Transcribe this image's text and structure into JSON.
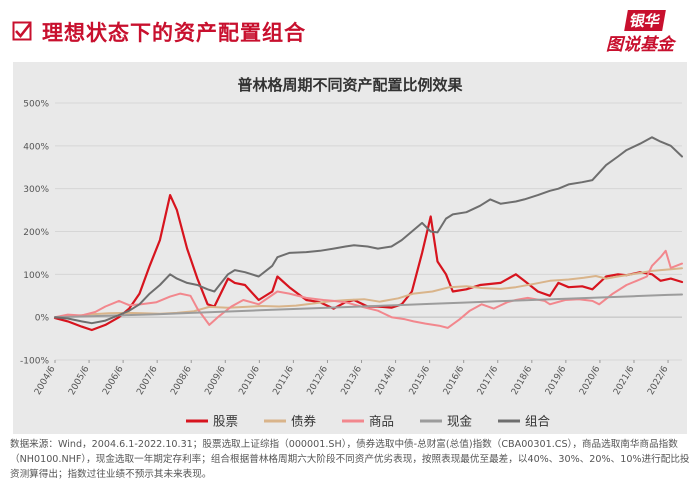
{
  "header": {
    "title": "理想状态下的资产配置组合",
    "brand_line1": "银华",
    "brand_line2": "图说基金"
  },
  "chart_data": {
    "type": "line",
    "title": "普林格周期不同资产配置比例效果",
    "xlabel": "",
    "ylabel": "",
    "ylim": [
      -100,
      500
    ],
    "yticks": [
      "-100%",
      "0%",
      "100%",
      "200%",
      "300%",
      "400%",
      "500%"
    ],
    "x_categories": [
      "2004/6",
      "2005/6",
      "2006/6",
      "2007/6",
      "2008/6",
      "2009/6",
      "2010/6",
      "2011/6",
      "2012/6",
      "2013/6",
      "2014/6",
      "2015/6",
      "2016/6",
      "2017/6",
      "2018/6",
      "2019/6",
      "2020/6",
      "2021/6",
      "2022/6"
    ],
    "grid": true,
    "legend_position": "bottom",
    "series": [
      {
        "name": "股票",
        "color": "#d7141e",
        "points": [
          [
            2004.42,
            -2
          ],
          [
            2004.8,
            -10
          ],
          [
            2005.2,
            -22
          ],
          [
            2005.5,
            -30
          ],
          [
            2005.9,
            -18
          ],
          [
            2006.3,
            0
          ],
          [
            2006.6,
            20
          ],
          [
            2006.9,
            55
          ],
          [
            2007.2,
            120
          ],
          [
            2007.5,
            180
          ],
          [
            2007.8,
            285
          ],
          [
            2008.0,
            250
          ],
          [
            2008.3,
            160
          ],
          [
            2008.6,
            90
          ],
          [
            2008.9,
            30
          ],
          [
            2009.1,
            25
          ],
          [
            2009.5,
            90
          ],
          [
            2009.7,
            80
          ],
          [
            2010.0,
            75
          ],
          [
            2010.4,
            40
          ],
          [
            2010.8,
            60
          ],
          [
            2010.95,
            95
          ],
          [
            2011.3,
            70
          ],
          [
            2011.8,
            40
          ],
          [
            2012.2,
            35
          ],
          [
            2012.6,
            20
          ],
          [
            2012.95,
            35
          ],
          [
            2013.2,
            40
          ],
          [
            2013.6,
            25
          ],
          [
            2013.9,
            25
          ],
          [
            2014.3,
            22
          ],
          [
            2014.6,
            30
          ],
          [
            2014.9,
            60
          ],
          [
            2015.2,
            150
          ],
          [
            2015.45,
            235
          ],
          [
            2015.65,
            130
          ],
          [
            2015.9,
            100
          ],
          [
            2016.1,
            60
          ],
          [
            2016.5,
            65
          ],
          [
            2016.9,
            75
          ],
          [
            2017.5,
            80
          ],
          [
            2017.95,
            100
          ],
          [
            2018.2,
            85
          ],
          [
            2018.6,
            60
          ],
          [
            2018.95,
            50
          ],
          [
            2019.2,
            80
          ],
          [
            2019.5,
            70
          ],
          [
            2019.9,
            72
          ],
          [
            2020.2,
            65
          ],
          [
            2020.6,
            95
          ],
          [
            2020.95,
            100
          ],
          [
            2021.2,
            98
          ],
          [
            2021.6,
            105
          ],
          [
            2021.95,
            100
          ],
          [
            2022.2,
            85
          ],
          [
            2022.5,
            90
          ],
          [
            2022.83,
            82
          ]
        ]
      },
      {
        "name": "债券",
        "color": "#d9b48a",
        "points": [
          [
            2004.42,
            0
          ],
          [
            2005.0,
            3
          ],
          [
            2005.5,
            7
          ],
          [
            2006.0,
            9
          ],
          [
            2006.5,
            10
          ],
          [
            2007.0,
            9
          ],
          [
            2007.5,
            8
          ],
          [
            2008.0,
            10
          ],
          [
            2008.5,
            14
          ],
          [
            2008.95,
            24
          ],
          [
            2009.5,
            22
          ],
          [
            2010.0,
            24
          ],
          [
            2010.5,
            26
          ],
          [
            2011.0,
            25
          ],
          [
            2011.5,
            27
          ],
          [
            2012.0,
            32
          ],
          [
            2012.5,
            37
          ],
          [
            2013.0,
            40
          ],
          [
            2013.5,
            42
          ],
          [
            2013.95,
            36
          ],
          [
            2014.5,
            44
          ],
          [
            2014.95,
            55
          ],
          [
            2015.5,
            60
          ],
          [
            2016.0,
            70
          ],
          [
            2016.5,
            72
          ],
          [
            2016.95,
            68
          ],
          [
            2017.5,
            66
          ],
          [
            2017.95,
            70
          ],
          [
            2018.5,
            78
          ],
          [
            2018.95,
            85
          ],
          [
            2019.5,
            88
          ],
          [
            2019.95,
            92
          ],
          [
            2020.3,
            96
          ],
          [
            2020.6,
            90
          ],
          [
            2020.95,
            95
          ],
          [
            2021.5,
            102
          ],
          [
            2021.95,
            108
          ],
          [
            2022.5,
            112
          ],
          [
            2022.83,
            114
          ]
        ]
      },
      {
        "name": "商品",
        "color": "#f2878d",
        "points": [
          [
            2004.42,
            0
          ],
          [
            2004.8,
            6
          ],
          [
            2005.2,
            4
          ],
          [
            2005.6,
            12
          ],
          [
            2005.9,
            25
          ],
          [
            2006.3,
            38
          ],
          [
            2006.6,
            28
          ],
          [
            2006.95,
            30
          ],
          [
            2007.4,
            35
          ],
          [
            2007.8,
            48
          ],
          [
            2008.1,
            55
          ],
          [
            2008.4,
            50
          ],
          [
            2008.6,
            20
          ],
          [
            2008.95,
            -18
          ],
          [
            2009.2,
            0
          ],
          [
            2009.6,
            25
          ],
          [
            2009.95,
            40
          ],
          [
            2010.4,
            30
          ],
          [
            2010.95,
            60
          ],
          [
            2011.3,
            55
          ],
          [
            2011.8,
            45
          ],
          [
            2012.3,
            40
          ],
          [
            2012.6,
            38
          ],
          [
            2012.95,
            35
          ],
          [
            2013.4,
            25
          ],
          [
            2013.9,
            15
          ],
          [
            2014.3,
            0
          ],
          [
            2014.7,
            -5
          ],
          [
            2014.95,
            -10
          ],
          [
            2015.3,
            -15
          ],
          [
            2015.7,
            -20
          ],
          [
            2015.95,
            -25
          ],
          [
            2016.3,
            -5
          ],
          [
            2016.6,
            15
          ],
          [
            2016.95,
            30
          ],
          [
            2017.3,
            20
          ],
          [
            2017.7,
            35
          ],
          [
            2017.95,
            40
          ],
          [
            2018.3,
            45
          ],
          [
            2018.8,
            38
          ],
          [
            2018.95,
            30
          ],
          [
            2019.4,
            40
          ],
          [
            2019.8,
            42
          ],
          [
            2020.2,
            38
          ],
          [
            2020.4,
            30
          ],
          [
            2020.8,
            55
          ],
          [
            2021.2,
            75
          ],
          [
            2021.5,
            85
          ],
          [
            2021.8,
            95
          ],
          [
            2021.95,
            120
          ],
          [
            2022.2,
            140
          ],
          [
            2022.35,
            155
          ],
          [
            2022.5,
            115
          ],
          [
            2022.83,
            125
          ]
        ]
      },
      {
        "name": "现金",
        "color": "#9c9c9c",
        "points": [
          [
            2004.42,
            0
          ],
          [
            2005.42,
            2
          ],
          [
            2006.42,
            4.5
          ],
          [
            2007.42,
            7
          ],
          [
            2008.42,
            10
          ],
          [
            2009.42,
            13
          ],
          [
            2010.42,
            16
          ],
          [
            2011.42,
            19
          ],
          [
            2012.42,
            22
          ],
          [
            2013.42,
            25
          ],
          [
            2014.42,
            28
          ],
          [
            2015.42,
            31
          ],
          [
            2016.42,
            34
          ],
          [
            2017.42,
            37
          ],
          [
            2018.42,
            40
          ],
          [
            2019.42,
            43
          ],
          [
            2020.42,
            46
          ],
          [
            2021.42,
            49
          ],
          [
            2022.42,
            52
          ],
          [
            2022.83,
            53
          ]
        ]
      },
      {
        "name": "组合",
        "color": "#6e6e6e",
        "points": [
          [
            2004.42,
            0
          ],
          [
            2004.8,
            -3
          ],
          [
            2005.2,
            -10
          ],
          [
            2005.5,
            -14
          ],
          [
            2005.9,
            -8
          ],
          [
            2006.3,
            5
          ],
          [
            2006.6,
            15
          ],
          [
            2006.9,
            30
          ],
          [
            2007.2,
            55
          ],
          [
            2007.5,
            75
          ],
          [
            2007.8,
            100
          ],
          [
            2008.0,
            90
          ],
          [
            2008.3,
            80
          ],
          [
            2008.6,
            75
          ],
          [
            2008.9,
            65
          ],
          [
            2009.1,
            60
          ],
          [
            2009.5,
            100
          ],
          [
            2009.7,
            110
          ],
          [
            2010.0,
            105
          ],
          [
            2010.4,
            95
          ],
          [
            2010.8,
            120
          ],
          [
            2010.95,
            140
          ],
          [
            2011.3,
            150
          ],
          [
            2011.8,
            152
          ],
          [
            2012.2,
            155
          ],
          [
            2012.6,
            160
          ],
          [
            2012.95,
            165
          ],
          [
            2013.2,
            168
          ],
          [
            2013.6,
            165
          ],
          [
            2013.9,
            160
          ],
          [
            2014.3,
            165
          ],
          [
            2014.6,
            180
          ],
          [
            2014.9,
            200
          ],
          [
            2015.2,
            220
          ],
          [
            2015.45,
            200
          ],
          [
            2015.65,
            198
          ],
          [
            2015.9,
            230
          ],
          [
            2016.1,
            240
          ],
          [
            2016.5,
            245
          ],
          [
            2016.9,
            260
          ],
          [
            2017.2,
            275
          ],
          [
            2017.5,
            265
          ],
          [
            2017.95,
            270
          ],
          [
            2018.2,
            275
          ],
          [
            2018.6,
            285
          ],
          [
            2018.95,
            295
          ],
          [
            2019.2,
            300
          ],
          [
            2019.5,
            310
          ],
          [
            2019.9,
            315
          ],
          [
            2020.2,
            320
          ],
          [
            2020.6,
            355
          ],
          [
            2020.95,
            375
          ],
          [
            2021.2,
            390
          ],
          [
            2021.6,
            405
          ],
          [
            2021.95,
            420
          ],
          [
            2022.2,
            410
          ],
          [
            2022.5,
            400
          ],
          [
            2022.83,
            375
          ]
        ]
      }
    ]
  },
  "footnote": {
    "line1": "数据来源：Wind，2004.6.1-2022.10.31；股票选取上证综指（000001.SH），债券选取中债-总财富(总值)指数（CBA00301.CS），商品选取南华商品指数",
    "line2": "（NH0100.NHF），现金选取一年期定存利率；组合根据普林格周期六大阶段不同资产优劣表现，按照表现最优至最差，以40%、30%、20%、10%进行配比投",
    "line3": "资测算得出；指数过往业绩不预示其未来表现。"
  }
}
